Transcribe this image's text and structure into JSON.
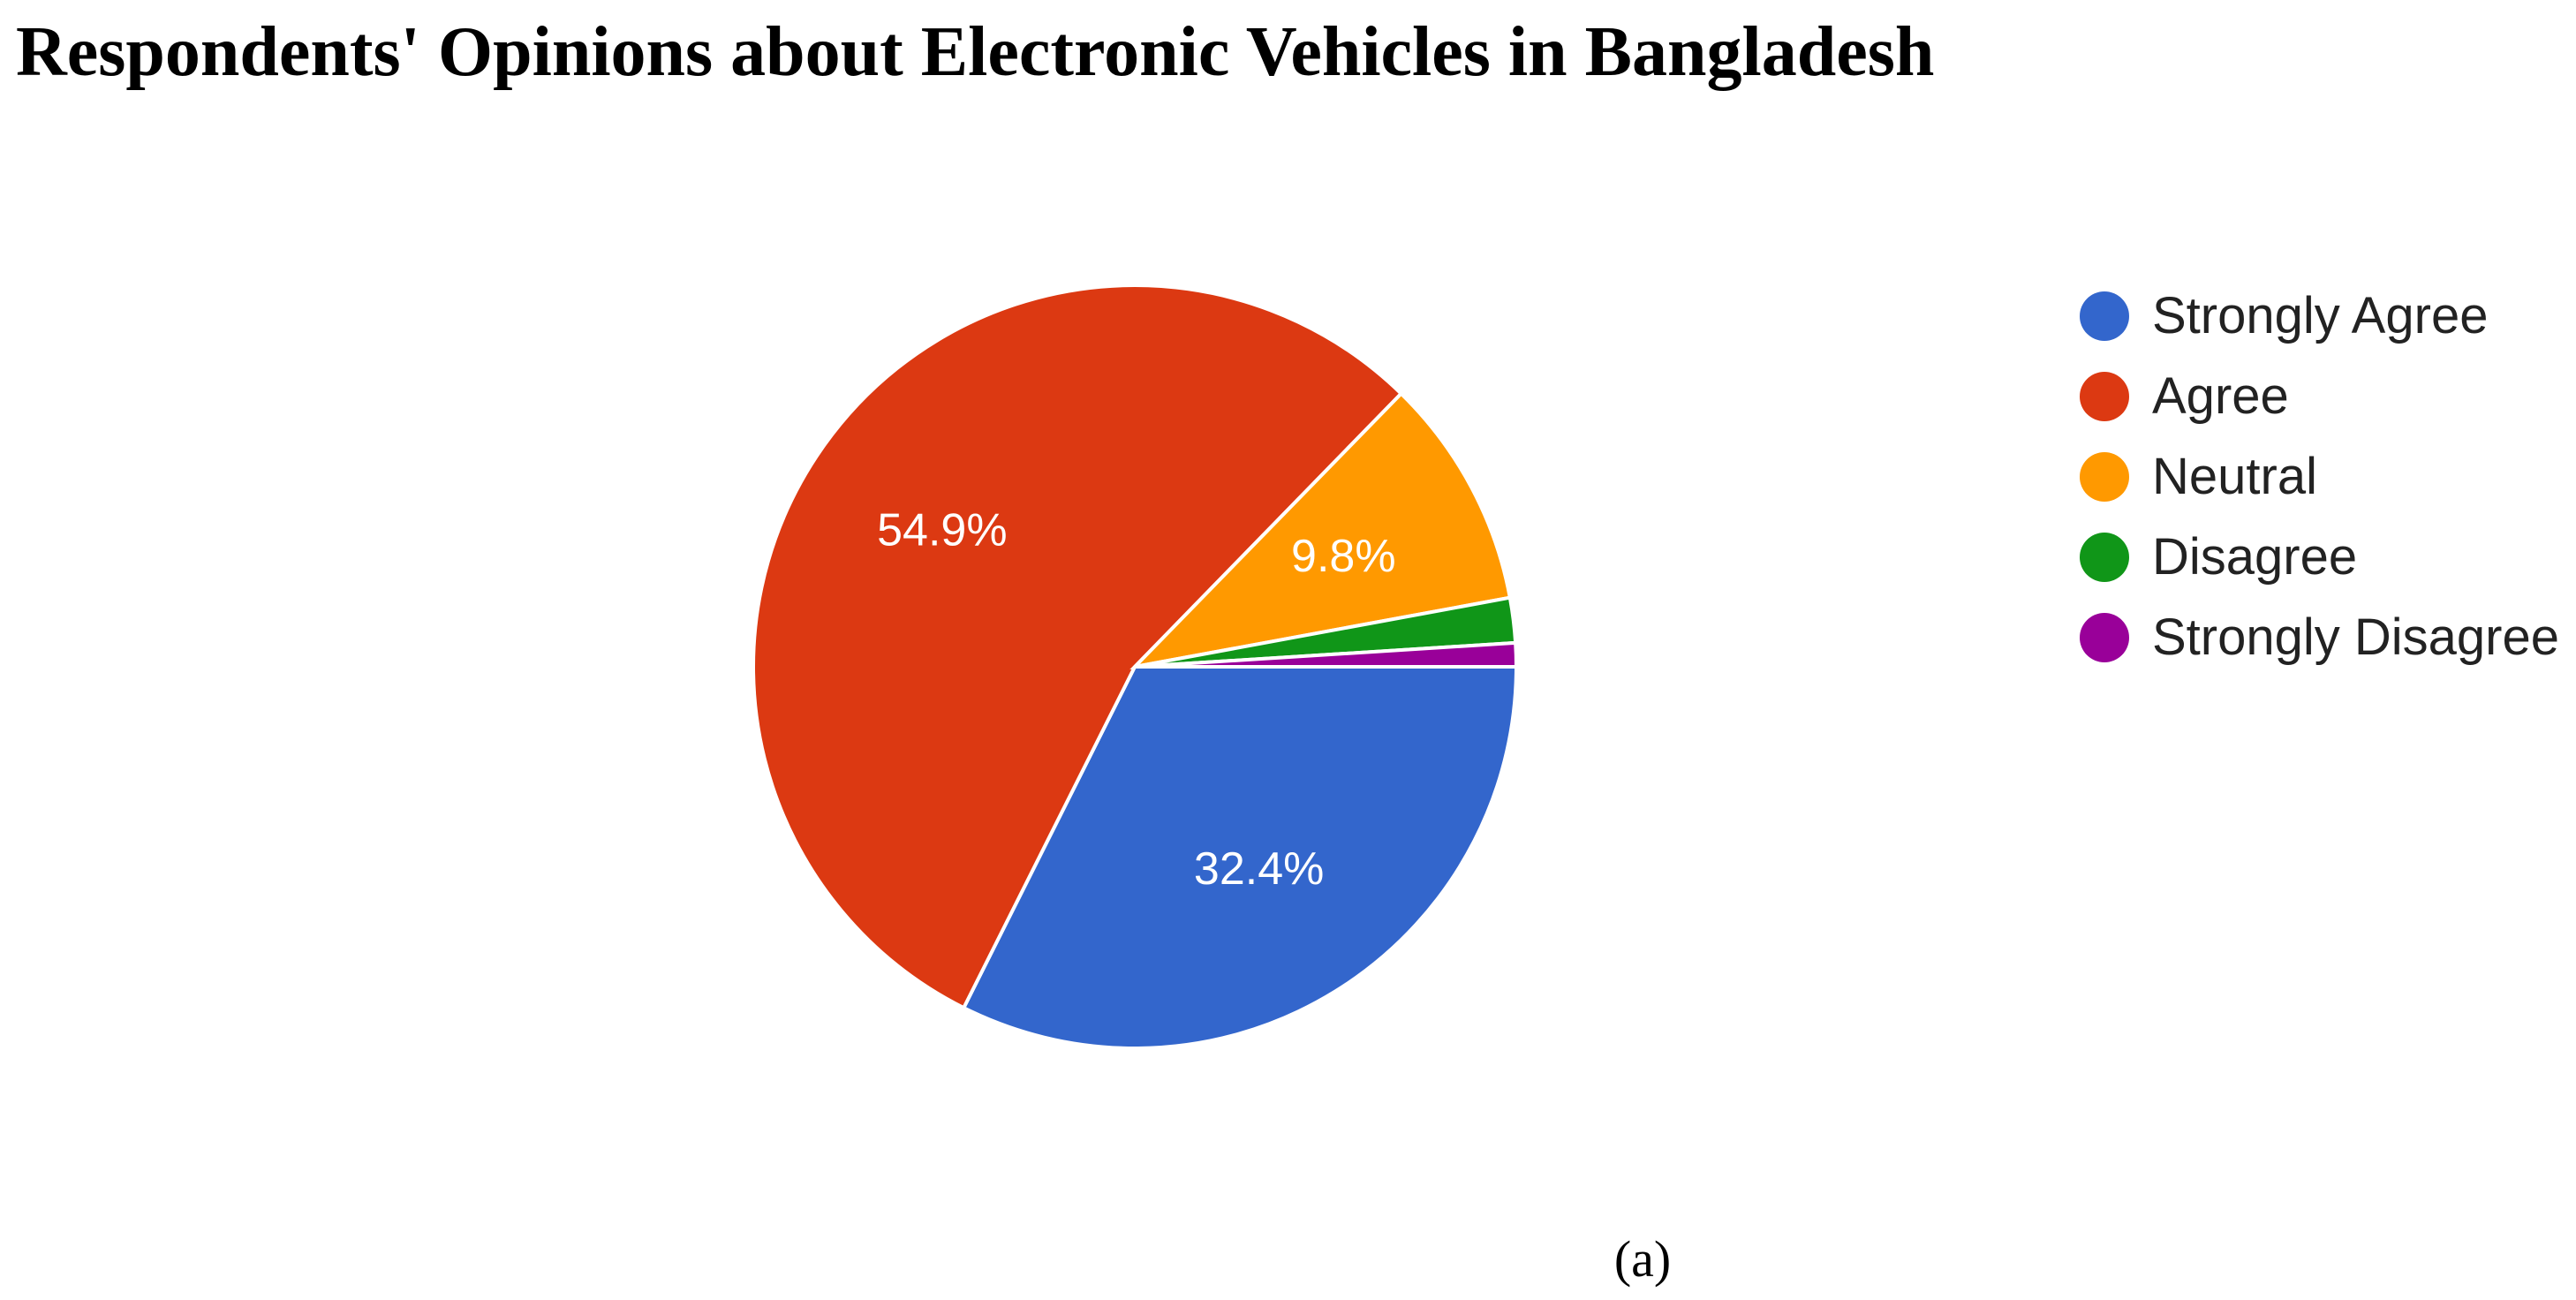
{
  "chart_data": {
    "type": "pie",
    "title": "Respondents' Opinions about Electronic Vehicles in Bangladesh",
    "categories": [
      "Strongly Agree",
      "Agree",
      "Neutral",
      "Disagree",
      "Strongly Disagree"
    ],
    "values": [
      32.4,
      54.9,
      9.8,
      1.9,
      1.0
    ],
    "colors": [
      "#3366cc",
      "#dc3912",
      "#ff9900",
      "#109618",
      "#990099"
    ],
    "data_labels": [
      "32.4%",
      "54.9%",
      "9.8%",
      "",
      ""
    ],
    "legend_position": "right"
  },
  "caption": "(a)"
}
